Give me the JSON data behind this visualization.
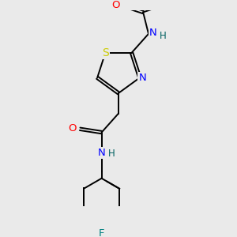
{
  "bg_color": "#eaeaea",
  "atom_colors": {
    "O": "#ff0000",
    "N": "#0000ff",
    "S": "#cccc00",
    "F": "#008080",
    "H": "#006060"
  },
  "font_size": 9.5,
  "bond_width": 1.4
}
